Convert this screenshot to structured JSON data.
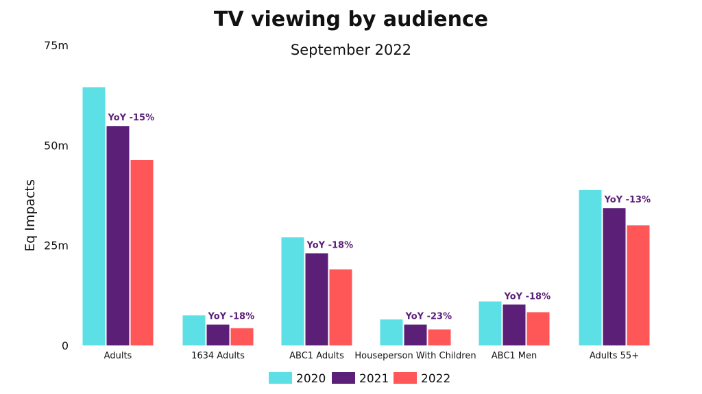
{
  "chart_data": {
    "type": "bar",
    "title": "TV viewing by audience",
    "subtitle": "September 2022",
    "ylabel": "Eq Impacts",
    "xlabel": "",
    "ylim": [
      0,
      75
    ],
    "ytick_values": [
      0,
      25,
      50,
      75
    ],
    "ytick_labels": [
      "0",
      "25m",
      "50m",
      "75m"
    ],
    "categories": [
      "Adults",
      "1634 Adults",
      "ABC1 Adults",
      "Houseperson With Children",
      "ABC1 Men",
      "Adults 55+"
    ],
    "series": [
      {
        "name": "2020",
        "color": "#5CE0E6",
        "values": [
          64.5,
          7.5,
          27.0,
          6.5,
          11.0,
          38.8
        ]
      },
      {
        "name": "2021",
        "color": "#5B1F78",
        "values": [
          54.8,
          5.2,
          23.0,
          5.2,
          10.2,
          34.3
        ]
      },
      {
        "name": "2022",
        "color": "#FF5757",
        "values": [
          46.3,
          4.3,
          19.0,
          4.0,
          8.3,
          30.0
        ]
      }
    ],
    "annotations": [
      "YoY -15%",
      "YoY -18%",
      "YoY -18%",
      "YoY -23%",
      "YoY -18%",
      "YoY -13%"
    ],
    "annotation_color": "#5B1F78",
    "grid": false,
    "legend_position": "bottom-center"
  }
}
